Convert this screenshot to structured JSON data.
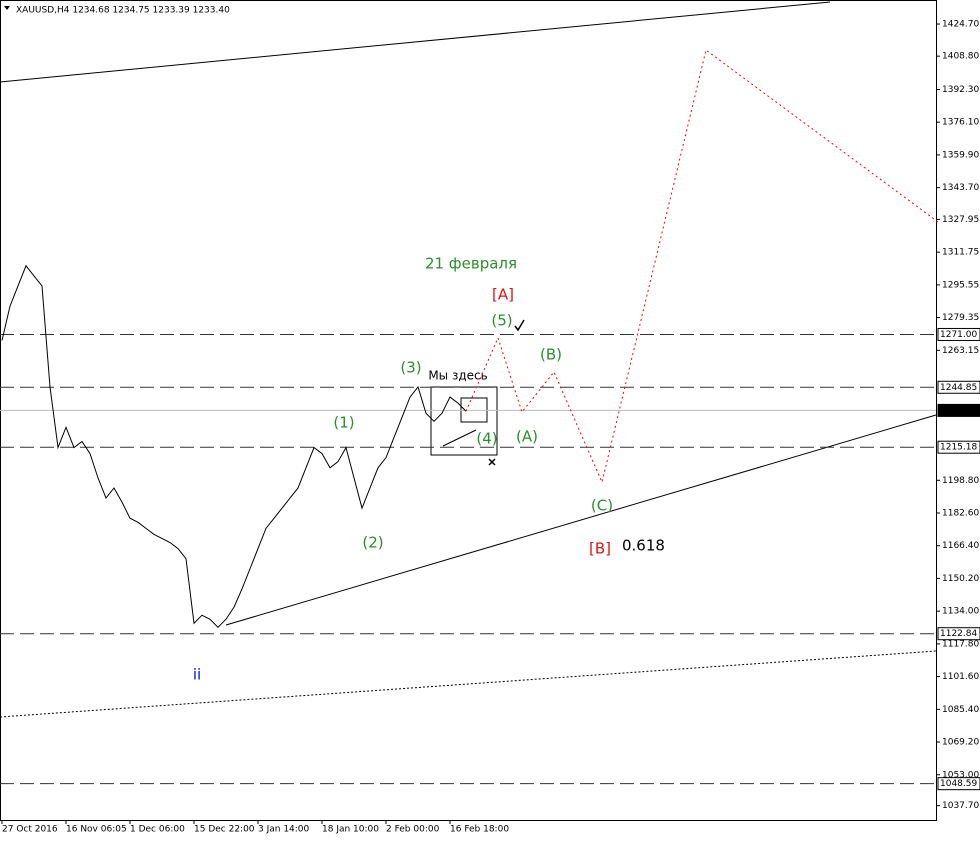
{
  "chart_data": {
    "type": "line",
    "header": "XAUUSD,H4  1234.68 1234.75 1233.39 1233.40",
    "categories": [
      "27 Oct 2016",
      null,
      null,
      null,
      null,
      null,
      null,
      null,
      "16 Nov 06:05",
      null,
      null,
      null,
      null,
      null,
      null,
      null,
      "1 Dec 06:00",
      null,
      null,
      null,
      null,
      null,
      null,
      null,
      "15 Dec 22:00",
      null,
      null,
      null,
      null,
      null,
      null,
      null,
      "3 Jan 14:00",
      null,
      null,
      null,
      null,
      null,
      null,
      null,
      "18 Jan 10:00",
      null,
      null,
      null,
      null,
      null,
      null,
      null,
      "2 Feb 00:00",
      null,
      null,
      null,
      null,
      null,
      null,
      null,
      "16 Feb 18:00",
      null,
      null
    ],
    "xlim": [
      -0.25,
      116.75
    ],
    "series": [
      {
        "color": "#000000",
        "values": [
          1268,
          1285,
          1295,
          1305,
          1300,
          1295,
          1245,
          1215,
          1225,
          1215,
          1218,
          1212,
          1200,
          1190,
          1195,
          1188,
          1180,
          1178,
          1175,
          1172,
          1170,
          1168,
          1165,
          1160,
          1128,
          1132,
          1130,
          1126,
          1130,
          1136,
          1145,
          1155,
          1165,
          1175,
          1180,
          1185,
          1190,
          1195,
          1205,
          1215,
          1212,
          1205,
          1208,
          1215,
          1200,
          1185,
          1195,
          1205,
          1210,
          1220,
          1230,
          1240,
          1245,
          1232,
          1228,
          1232,
          1240,
          1237,
          1233
        ]
      },
      {
        "color": "#ff0000",
        "x": [
          58,
          62,
          65,
          69,
          75,
          88,
          117
        ],
        "values": [
          1233,
          1269.3,
          1232.6,
          1252.4,
          1197.9,
          1411.8,
          1326.7
        ]
      }
    ],
    "ylim": [
      1030.6,
      1436.6
    ],
    "yticks": [
      {
        "value": 1424.7,
        "label": "1424.70"
      },
      {
        "value": 1408.8,
        "label": "1408.80"
      },
      {
        "value": 1392.3,
        "label": "1392.30"
      },
      {
        "value": 1376.1,
        "label": "1376.10"
      },
      {
        "value": 1359.9,
        "label": "1359.90"
      },
      {
        "value": 1343.7,
        "label": "1343.70"
      },
      {
        "value": 1327.95,
        "label": "1327.95"
      },
      {
        "value": 1311.75,
        "label": "1311.75"
      },
      {
        "value": 1295.55,
        "label": "1295.55"
      },
      {
        "value": 1279.35,
        "label": "1279.35"
      },
      {
        "value": 1263.15,
        "label": "1263.15"
      },
      {
        "value": 1198.8,
        "label": "1198.80"
      },
      {
        "value": 1182.6,
        "label": "1182.60"
      },
      {
        "value": 1166.4,
        "label": "1166.40"
      },
      {
        "value": 1150.2,
        "label": "1150.20"
      },
      {
        "value": 1134,
        "label": "1134.00"
      },
      {
        "value": 1117.8,
        "label": "1117.80"
      },
      {
        "value": 1101.6,
        "label": "1101.60"
      },
      {
        "value": 1085.4,
        "label": "1085.40"
      },
      {
        "value": 1069.2,
        "label": "1069.20"
      },
      {
        "value": 1053,
        "label": "1053.00"
      },
      {
        "value": 1037.7,
        "label": "1037.70"
      }
    ],
    "levels": [
      {
        "value": 1271,
        "label": "1271.00"
      },
      {
        "value": 1244.85,
        "label": "1244.85"
      },
      {
        "value": 1215.18,
        "label": "1215.18"
      },
      {
        "value": 1122.84,
        "label": "1122.84"
      },
      {
        "value": 1048.59,
        "label": "1048.59"
      }
    ],
    "current_price": {
      "value": 1233.4,
      "label": "1233.40"
    },
    "annotations": [
      "21 февраля",
      "[A]",
      "(5)",
      "(B)",
      "(3)",
      "Мы здесь",
      "(1)",
      "(4)",
      "(A)",
      "(C)",
      "(2)",
      "[B]",
      "0.618",
      "ii"
    ]
  }
}
